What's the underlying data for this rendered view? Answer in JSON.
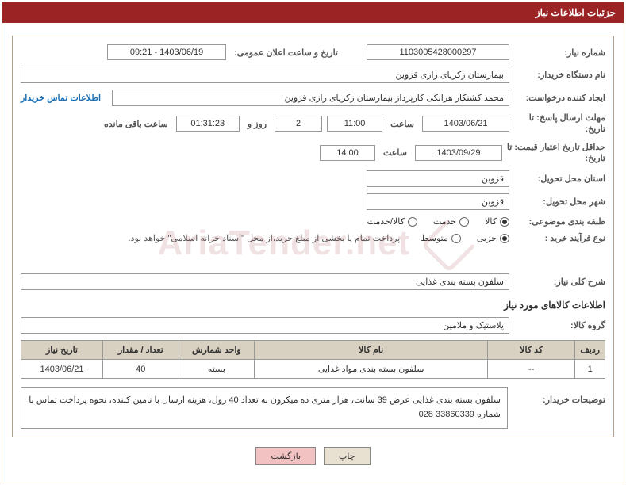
{
  "panel": {
    "title": "جزئیات اطلاعات نیاز"
  },
  "header": {
    "need_number_label": "شماره نیاز:",
    "need_number": "1103005428000297",
    "public_announce_label": "تاریخ و ساعت اعلان عمومی:",
    "public_announce": "1403/06/19 - 09:21"
  },
  "buyer": {
    "label": "نام دستگاه خریدار:",
    "name": "بیمارستان زکریای رازی قزوین"
  },
  "requester": {
    "label": "ایجاد کننده درخواست:",
    "name": "محمد کشتکار هرانکی کارپرداز بیمارستان زکریای رازی قزوین",
    "contact_link": "اطلاعات تماس خریدار"
  },
  "deadline": {
    "label_line1": "مهلت ارسال پاسخ: تا",
    "label_line2": "تاریخ:",
    "date": "1403/06/21",
    "time_label": "ساعت",
    "time": "11:00",
    "days": "2",
    "days_label": "روز و",
    "countdown": "01:31:23",
    "remaining_label": "ساعت باقی مانده"
  },
  "validity": {
    "label_line1": "حداقل تاریخ اعتبار قیمت: تا",
    "label_line2": "تاریخ:",
    "date": "1403/09/29",
    "time_label": "ساعت",
    "time": "14:00"
  },
  "province": {
    "label": "استان محل تحویل:",
    "value": "قزوین"
  },
  "city": {
    "label": "شهر محل تحویل:",
    "value": "قزوین"
  },
  "classification": {
    "label": "طبقه بندی موضوعی:",
    "options": [
      {
        "text": "کالا",
        "checked": true
      },
      {
        "text": "خدمت",
        "checked": false
      },
      {
        "text": "کالا/خدمت",
        "checked": false
      }
    ]
  },
  "process": {
    "label": "نوع فرآیند خرید :",
    "options": [
      {
        "text": "جزیی",
        "checked": true
      },
      {
        "text": "متوسط",
        "checked": false
      }
    ],
    "note": "پرداخت تمام یا بخشی از مبلغ خرید،از محل \"اسناد خزانه اسلامی\" خواهد بود."
  },
  "summary": {
    "label": "شرح کلی نیاز:",
    "text": "سلفون بسته بندی غذایی"
  },
  "goods_header": "اطلاعات کالاهای مورد نیاز",
  "goods_group": {
    "label": "گروه کالا:",
    "value": "پلاستیک و ملامین"
  },
  "table": {
    "columns": [
      "ردیف",
      "کد کالا",
      "نام کالا",
      "واحد شمارش",
      "تعداد / مقدار",
      "تاریخ نیاز"
    ],
    "rows": [
      {
        "index": "1",
        "code": "--",
        "name": "سلفون بسته بندی مواد غذایی",
        "unit": "بسته",
        "qty": "40",
        "date": "1403/06/21"
      }
    ]
  },
  "buyer_notes": {
    "label": "توضیحات خریدار:",
    "text": "سلفون بسته بندی غذایی عرض 39 سانت، هزار متری ده میکرون به تعداد 40 رول، هزینه ارسال با تامین کننده، نحوه پرداخت تماس با شماره 33860339 028"
  },
  "buttons": {
    "print": "چاپ",
    "back": "بازگشت"
  },
  "watermark": "AriaTender.net",
  "colors": {
    "header_bg": "#9b2323",
    "border": "#b0a090",
    "table_header_bg": "#d8d0c0",
    "link": "#1a6fb5",
    "btn_back_bg": "#f2c2c2"
  }
}
